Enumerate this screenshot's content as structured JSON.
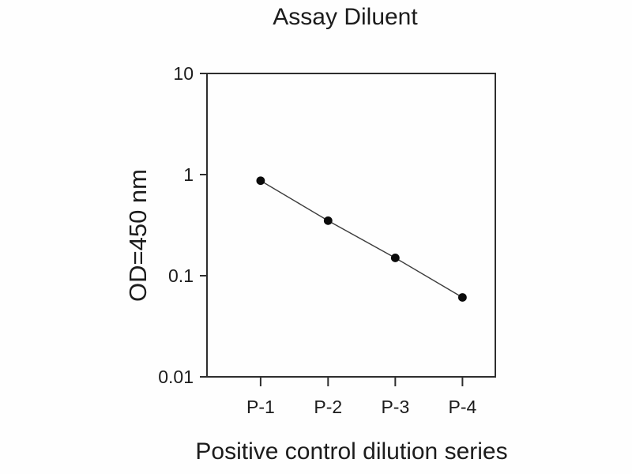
{
  "chart_data": {
    "type": "line",
    "title": "Assay Diluent",
    "xlabel": "Positive control dilution series",
    "ylabel": "OD=450 nm",
    "categories": [
      "P-1",
      "P-2",
      "P-3",
      "P-4"
    ],
    "values": [
      0.87,
      0.35,
      0.15,
      0.061
    ],
    "y_axis": {
      "scale": "log",
      "min": 0.01,
      "max": 10,
      "ticks": [
        10,
        1,
        0.1,
        0.01
      ],
      "tick_labels": [
        "10",
        "1",
        "0.1",
        "0.01"
      ]
    },
    "grid": false,
    "legend": "none",
    "marker": {
      "shape": "circle",
      "color": "#0b0b0b",
      "radius": 5.4
    },
    "colors": {
      "line": "#3c3c3c",
      "axis": "#2e2e2e",
      "text": "#1c1c1c",
      "background": "#fefefe"
    }
  }
}
